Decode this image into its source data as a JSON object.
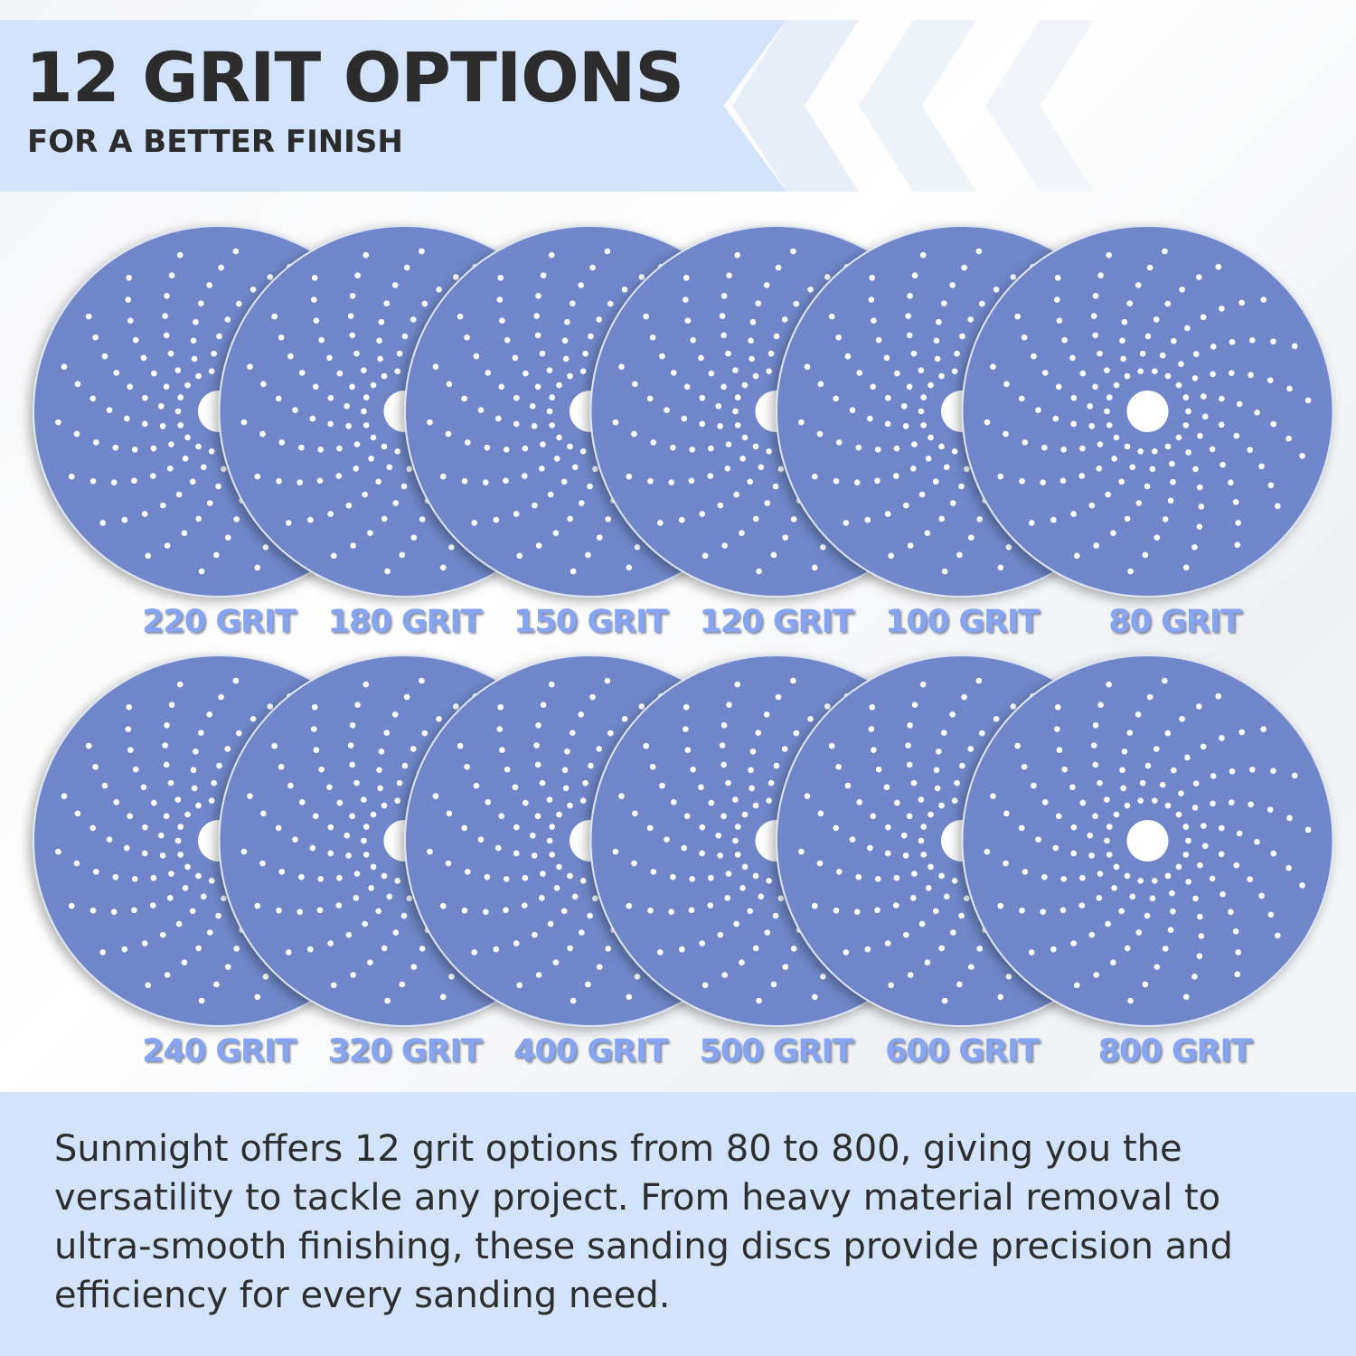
{
  "header": {
    "title": "12 GRIT OPTIONS",
    "subtitle": "FOR A BETTER FINISH"
  },
  "discs": {
    "color": "#6f86c8",
    "row1": [
      "220 GRIT",
      "180 GRIT",
      "150 GRIT",
      "120 GRIT",
      "100 GRIT",
      "80 GRIT"
    ],
    "row2": [
      "240 GRIT",
      "320 GRIT",
      "400 GRIT",
      "500 GRIT",
      "600 GRIT",
      "800 GRIT"
    ]
  },
  "description": "Sunmight offers 12 grit options from 80 to 800, giving you the versatility to tackle any project. From heavy material removal to ultra-smooth finishing, these sanding discs provide precision and efficiency for every sanding need."
}
